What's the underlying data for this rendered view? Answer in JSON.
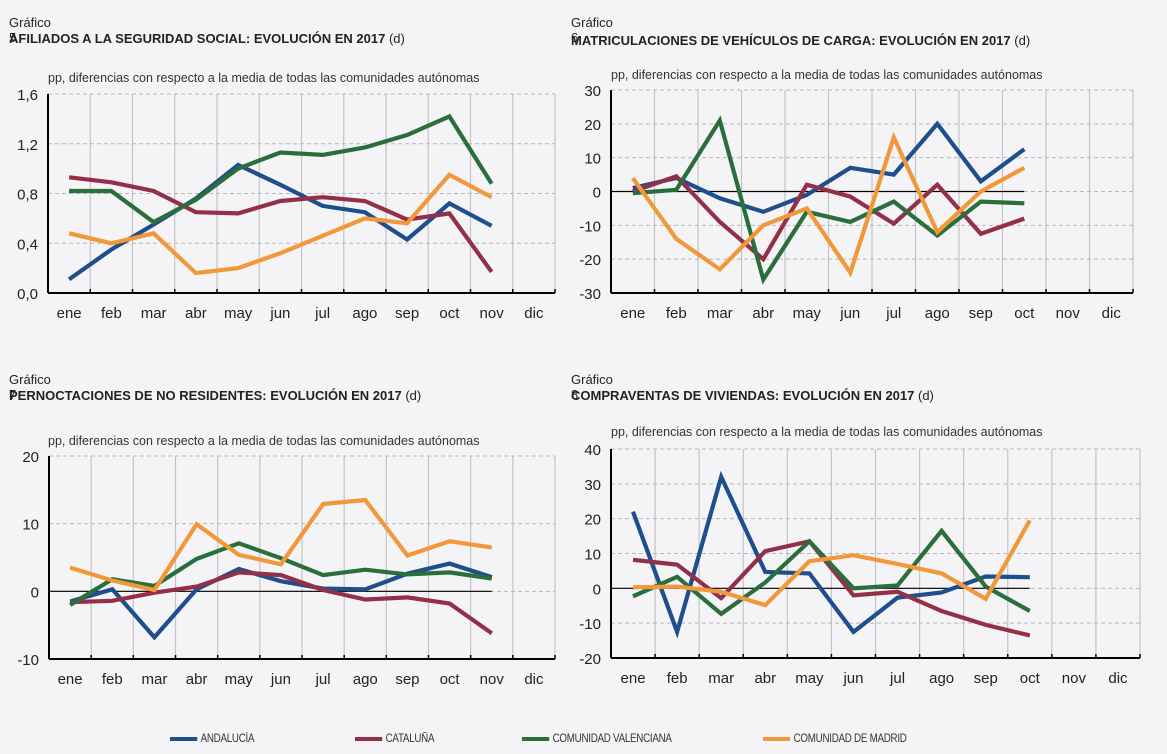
{
  "legend": [
    {
      "name": "ANDALUCÍA",
      "color": "#1f4e8c"
    },
    {
      "name": "CATALUÑA",
      "color": "#933047"
    },
    {
      "name": "COMUNIDAD VALENCIANA",
      "color": "#2a6e3c"
    },
    {
      "name": "COMUNIDAD DE MADRID",
      "color": "#f0983a"
    }
  ],
  "chart_data": [
    {
      "type": "line",
      "number": "Gráfico 5",
      "title": "AFILIADOS A LA SEGURIDAD SOCIAL: EVOLUCIÓN EN 2017",
      "title_note": "(d)",
      "ylabel": "pp, diferencias con respecto a la media de todas las comunidades autónomas",
      "categories": [
        "ene",
        "feb",
        "mar",
        "abr",
        "may",
        "jun",
        "jul",
        "ago",
        "sep",
        "oct",
        "nov",
        "dic"
      ],
      "ylim": [
        0,
        1.6
      ],
      "yticks": [
        0,
        0.4,
        0.8,
        1.2,
        1.6
      ],
      "ytick_labels": [
        "0,0",
        "0,4",
        "0,8",
        "1,2",
        "1,6"
      ],
      "zero_line": false,
      "grid": true,
      "series": [
        {
          "name": "ANDALUCÍA",
          "values": [
            0.11,
            0.35,
            0.55,
            0.76,
            1.03,
            0.87,
            0.7,
            0.65,
            0.43,
            0.72,
            0.54
          ]
        },
        {
          "name": "CATALUÑA",
          "values": [
            0.93,
            0.89,
            0.82,
            0.65,
            0.64,
            0.74,
            0.77,
            0.74,
            0.59,
            0.64,
            0.17
          ]
        },
        {
          "name": "COMUNIDAD VALENCIANA",
          "values": [
            0.82,
            0.82,
            0.57,
            0.75,
            1.0,
            1.13,
            1.11,
            1.17,
            1.27,
            1.42,
            0.88
          ]
        },
        {
          "name": "COMUNIDAD DE MADRID",
          "values": [
            0.48,
            0.4,
            0.48,
            0.16,
            0.2,
            0.32,
            0.46,
            0.6,
            0.56,
            0.95,
            0.77
          ]
        }
      ]
    },
    {
      "type": "line",
      "number": "Gráfico 6",
      "title": "MATRICULACIONES DE VEHÍCULOS DE CARGA: EVOLUCIÓN EN 2017",
      "title_note": "(d)",
      "ylabel": "pp, diferencias con respecto a la media de todas las comunidades autónomas",
      "categories": [
        "ene",
        "feb",
        "mar",
        "abr",
        "may",
        "jun",
        "jul",
        "ago",
        "sep",
        "oct",
        "nov",
        "dic"
      ],
      "ylim": [
        -30,
        30
      ],
      "yticks": [
        -30,
        -20,
        -10,
        0,
        10,
        20,
        30
      ],
      "ytick_labels": [
        "-30",
        "-20",
        "-10",
        "0",
        "10",
        "20",
        "30"
      ],
      "zero_line": true,
      "grid": true,
      "series": [
        {
          "name": "ANDALUCÍA",
          "values": [
            1,
            4,
            -2,
            -6,
            -1,
            7,
            5,
            20,
            3,
            12.5
          ]
        },
        {
          "name": "CATALUÑA",
          "values": [
            0,
            4.5,
            -9,
            -20,
            2,
            -1.5,
            -9.5,
            2,
            -12.5,
            -8
          ]
        },
        {
          "name": "COMUNIDAD VALENCIANA",
          "values": [
            -0.5,
            0.5,
            21,
            -26,
            -6,
            -9,
            -3,
            -13,
            -3,
            -3.5
          ]
        },
        {
          "name": "COMUNIDAD DE MADRID",
          "values": [
            4,
            -14,
            -23,
            -10,
            -5,
            -24,
            16,
            -12,
            0,
            7
          ]
        }
      ]
    },
    {
      "type": "line",
      "number": "Gráfico 7",
      "title": "PERNOCTACIONES DE NO RESIDENTES: EVOLUCIÓN EN 2017",
      "title_note": "(d)",
      "ylabel": "pp, diferencias con respecto a la media de todas las comunidades autónomas",
      "categories": [
        "ene",
        "feb",
        "mar",
        "abr",
        "may",
        "jun",
        "jul",
        "ago",
        "sep",
        "oct",
        "nov",
        "dic"
      ],
      "ylim": [
        -10,
        20
      ],
      "yticks": [
        -10,
        0,
        10,
        20
      ],
      "ytick_labels": [
        "-10",
        "0",
        "10",
        "20"
      ],
      "zero_line": true,
      "grid": true,
      "series": [
        {
          "name": "ANDALUCÍA",
          "values": [
            -1.5,
            0.3,
            -6.8,
            0.3,
            3.3,
            1.5,
            0.4,
            0.3,
            2.6,
            4.1,
            2.1
          ]
        },
        {
          "name": "CATALUÑA",
          "values": [
            -1.6,
            -1.4,
            -0.2,
            0.7,
            2.8,
            2.4,
            0.2,
            -1.2,
            -0.9,
            -1.8,
            -6.2
          ]
        },
        {
          "name": "COMUNIDAD VALENCIANA",
          "values": [
            -2.0,
            1.8,
            0.8,
            4.8,
            7.1,
            4.9,
            2.4,
            3.2,
            2.5,
            2.8,
            1.9
          ]
        },
        {
          "name": "COMUNIDAD DE MADRID",
          "values": [
            3.5,
            1.6,
            0.2,
            9.9,
            5.4,
            4.0,
            12.9,
            13.5,
            5.3,
            7.4,
            6.5
          ]
        }
      ]
    },
    {
      "type": "line",
      "number": "Gráfico 8",
      "title": "COMPRAVENTAS DE VIVIENDAS: EVOLUCIÓN EN 2017",
      "title_note": "(d)",
      "ylabel": "pp, diferencias con respecto a la media de todas las comunidades autónomas",
      "categories": [
        "ene",
        "feb",
        "mar",
        "abr",
        "may",
        "jun",
        "jul",
        "ago",
        "sep",
        "oct",
        "nov",
        "dic"
      ],
      "ylim": [
        -20,
        40
      ],
      "yticks": [
        -20,
        -10,
        0,
        10,
        20,
        30,
        40
      ],
      "ytick_labels": [
        "-20",
        "-10",
        "0",
        "10",
        "20",
        "30",
        "40"
      ],
      "zero_line": true,
      "grid": true,
      "series": [
        {
          "name": "ANDALUCÍA",
          "values": [
            22,
            -12.5,
            32,
            4.7,
            4.3,
            -12.5,
            -2.7,
            -1.2,
            3.4,
            3.2
          ]
        },
        {
          "name": "CATALUÑA",
          "values": [
            8.2,
            6.8,
            -2.8,
            10.7,
            13.5,
            -2.0,
            -1.0,
            -6.5,
            -10.5,
            -13.5
          ]
        },
        {
          "name": "COMUNIDAD VALENCIANA",
          "values": [
            -2.3,
            3.3,
            -7.3,
            1.7,
            13.5,
            0.0,
            0.8,
            16.5,
            0.5,
            -6.5
          ]
        },
        {
          "name": "COMUNIDAD DE MADRID",
          "values": [
            0.3,
            0.5,
            -1.0,
            -4.8,
            7.8,
            9.5,
            7.0,
            4.3,
            -3.0,
            19.5
          ]
        }
      ]
    }
  ]
}
